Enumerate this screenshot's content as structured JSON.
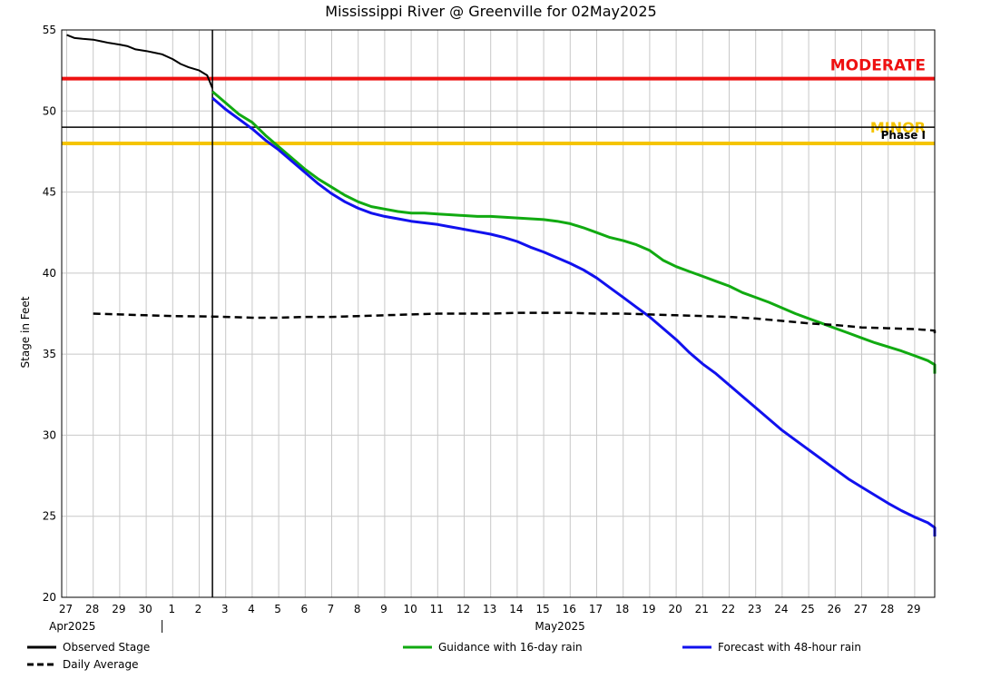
{
  "chart_data": {
    "type": "line",
    "title": "Mississippi River @ Greenville for 02May2025",
    "ylabel": "Stage in Feet",
    "xlabel": "",
    "ylim": [
      20,
      55
    ],
    "y_ticks": [
      20,
      25,
      30,
      35,
      40,
      45,
      50,
      55
    ],
    "x_range_days": [
      0,
      33
    ],
    "grid": true,
    "x_day_labels": [
      "27",
      "28",
      "29",
      "30",
      "1",
      "2",
      "3",
      "4",
      "5",
      "6",
      "7",
      "8",
      "9",
      "10",
      "11",
      "12",
      "13",
      "14",
      "15",
      "16",
      "17",
      "18",
      "19",
      "20",
      "21",
      "22",
      "23",
      "24",
      "25",
      "26",
      "27",
      "28",
      "29"
    ],
    "month_labels": [
      {
        "text": "Apr2025",
        "day": 0.9
      },
      {
        "text": "May2025",
        "day": 19.3
      }
    ],
    "month_divider_day": 3.6,
    "current_day": 5.5,
    "thresholds": [
      {
        "name": "MODERATE",
        "value": 52,
        "color": "#ee1111",
        "label": "MODERATE"
      },
      {
        "name": "MINOR",
        "value": 48,
        "color": "#f5c400",
        "label": "MINOR"
      },
      {
        "name": "Phase I",
        "value": 49,
        "color": "#000000",
        "label": "Phase I"
      }
    ],
    "series": [
      {
        "name": "Observed Stage",
        "color": "#000000",
        "dash": "solid",
        "points": [
          [
            0,
            54.7
          ],
          [
            0.3,
            54.5
          ],
          [
            0.6,
            54.45
          ],
          [
            1,
            54.4
          ],
          [
            1.3,
            54.3
          ],
          [
            1.6,
            54.2
          ],
          [
            2,
            54.1
          ],
          [
            2.3,
            54.0
          ],
          [
            2.6,
            53.8
          ],
          [
            3,
            53.7
          ],
          [
            3.3,
            53.6
          ],
          [
            3.6,
            53.5
          ],
          [
            4,
            53.2
          ],
          [
            4.3,
            52.9
          ],
          [
            4.6,
            52.7
          ],
          [
            5,
            52.5
          ],
          [
            5.3,
            52.2
          ],
          [
            5.5,
            51.4
          ]
        ]
      },
      {
        "name": "Guidance with 16-day rain",
        "color": "#11aa11",
        "dash": "solid",
        "points": [
          [
            5.5,
            51.2
          ],
          [
            6,
            50.5
          ],
          [
            6.5,
            49.8
          ],
          [
            7,
            49.3
          ],
          [
            7.5,
            48.5
          ],
          [
            8,
            47.8
          ],
          [
            8.5,
            47.1
          ],
          [
            9,
            46.4
          ],
          [
            9.5,
            45.8
          ],
          [
            10,
            45.3
          ],
          [
            10.5,
            44.8
          ],
          [
            11,
            44.4
          ],
          [
            11.5,
            44.1
          ],
          [
            12,
            43.95
          ],
          [
            12.5,
            43.8
          ],
          [
            13,
            43.7
          ],
          [
            13.5,
            43.7
          ],
          [
            14,
            43.65
          ],
          [
            14.5,
            43.6
          ],
          [
            15,
            43.55
          ],
          [
            15.5,
            43.5
          ],
          [
            16,
            43.5
          ],
          [
            16.5,
            43.45
          ],
          [
            17,
            43.4
          ],
          [
            17.5,
            43.35
          ],
          [
            18,
            43.3
          ],
          [
            18.5,
            43.2
          ],
          [
            19,
            43.05
          ],
          [
            19.5,
            42.8
          ],
          [
            20,
            42.5
          ],
          [
            20.5,
            42.2
          ],
          [
            21,
            42.0
          ],
          [
            21.5,
            41.75
          ],
          [
            22,
            41.4
          ],
          [
            22.5,
            40.8
          ],
          [
            23,
            40.4
          ],
          [
            23.5,
            40.1
          ],
          [
            24,
            39.8
          ],
          [
            24.5,
            39.5
          ],
          [
            25,
            39.2
          ],
          [
            25.5,
            38.8
          ],
          [
            26,
            38.5
          ],
          [
            26.5,
            38.2
          ],
          [
            27,
            37.85
          ],
          [
            27.5,
            37.5
          ],
          [
            28,
            37.2
          ],
          [
            28.5,
            36.9
          ],
          [
            29,
            36.6
          ],
          [
            29.5,
            36.3
          ],
          [
            30,
            36.0
          ],
          [
            30.5,
            35.7
          ],
          [
            31,
            35.45
          ],
          [
            31.5,
            35.2
          ],
          [
            32,
            34.9
          ],
          [
            32.5,
            34.6
          ],
          [
            33,
            34.35
          ],
          [
            33.5,
            34.0
          ],
          [
            33.75,
            33.8
          ]
        ]
      },
      {
        "name": "Forecast with 48-hour rain",
        "color": "#1111ee",
        "dash": "solid",
        "points": [
          [
            5.5,
            50.8
          ],
          [
            6,
            50.1
          ],
          [
            6.5,
            49.5
          ],
          [
            7,
            48.9
          ],
          [
            7.5,
            48.2
          ],
          [
            8,
            47.6
          ],
          [
            8.5,
            46.9
          ],
          [
            9,
            46.2
          ],
          [
            9.5,
            45.5
          ],
          [
            10,
            44.9
          ],
          [
            10.5,
            44.4
          ],
          [
            11,
            44.0
          ],
          [
            11.5,
            43.7
          ],
          [
            12,
            43.5
          ],
          [
            12.5,
            43.35
          ],
          [
            13,
            43.2
          ],
          [
            13.5,
            43.1
          ],
          [
            14,
            43.0
          ],
          [
            14.5,
            42.85
          ],
          [
            15,
            42.7
          ],
          [
            15.5,
            42.55
          ],
          [
            16,
            42.4
          ],
          [
            16.5,
            42.2
          ],
          [
            17,
            41.95
          ],
          [
            17.5,
            41.6
          ],
          [
            18,
            41.3
          ],
          [
            18.5,
            40.95
          ],
          [
            19,
            40.6
          ],
          [
            19.5,
            40.2
          ],
          [
            20,
            39.7
          ],
          [
            20.5,
            39.1
          ],
          [
            21,
            38.5
          ],
          [
            21.5,
            37.9
          ],
          [
            22,
            37.3
          ],
          [
            22.5,
            36.6
          ],
          [
            23,
            35.9
          ],
          [
            23.5,
            35.1
          ],
          [
            24,
            34.4
          ],
          [
            24.5,
            33.8
          ],
          [
            25,
            33.1
          ],
          [
            25.5,
            32.4
          ],
          [
            26,
            31.7
          ],
          [
            26.5,
            31.0
          ],
          [
            27,
            30.3
          ],
          [
            27.5,
            29.7
          ],
          [
            28,
            29.1
          ],
          [
            28.5,
            28.5
          ],
          [
            29,
            27.9
          ],
          [
            29.5,
            27.3
          ],
          [
            30,
            26.8
          ],
          [
            30.5,
            26.3
          ],
          [
            31,
            25.8
          ],
          [
            31.5,
            25.35
          ],
          [
            32,
            24.95
          ],
          [
            32.5,
            24.6
          ],
          [
            33,
            24.3
          ],
          [
            33.5,
            24.0
          ],
          [
            33.8,
            23.75
          ]
        ]
      },
      {
        "name": "Daily Average",
        "color": "#000000",
        "dash": "dashed",
        "points": [
          [
            1,
            37.5
          ],
          [
            2,
            37.45
          ],
          [
            3,
            37.4
          ],
          [
            4,
            37.35
          ],
          [
            5,
            37.33
          ],
          [
            6,
            37.3
          ],
          [
            7,
            37.25
          ],
          [
            8,
            37.25
          ],
          [
            9,
            37.3
          ],
          [
            10,
            37.3
          ],
          [
            11,
            37.35
          ],
          [
            12,
            37.4
          ],
          [
            13,
            37.45
          ],
          [
            14,
            37.5
          ],
          [
            15,
            37.5
          ],
          [
            16,
            37.5
          ],
          [
            17,
            37.55
          ],
          [
            18,
            37.55
          ],
          [
            19,
            37.55
          ],
          [
            20,
            37.5
          ],
          [
            21,
            37.5
          ],
          [
            22,
            37.45
          ],
          [
            23,
            37.4
          ],
          [
            24,
            37.35
          ],
          [
            25,
            37.3
          ],
          [
            26,
            37.2
          ],
          [
            27,
            37.05
          ],
          [
            28,
            36.9
          ],
          [
            29,
            36.8
          ],
          [
            30,
            36.65
          ],
          [
            31,
            36.6
          ],
          [
            32,
            36.55
          ],
          [
            33,
            36.45
          ],
          [
            34,
            36.3
          ],
          [
            35,
            36.15
          ]
        ]
      }
    ],
    "legend": [
      {
        "label": "Observed Stage",
        "color": "#000000",
        "dash": "solid"
      },
      {
        "label": "Daily Average",
        "color": "#000000",
        "dash": "dashed"
      },
      {
        "label": "Guidance with 16-day rain",
        "color": "#11aa11",
        "dash": "solid"
      },
      {
        "label": "Forecast with 48-hour rain",
        "color": "#1111ee",
        "dash": "solid"
      }
    ],
    "legend_placement": "bottom"
  }
}
